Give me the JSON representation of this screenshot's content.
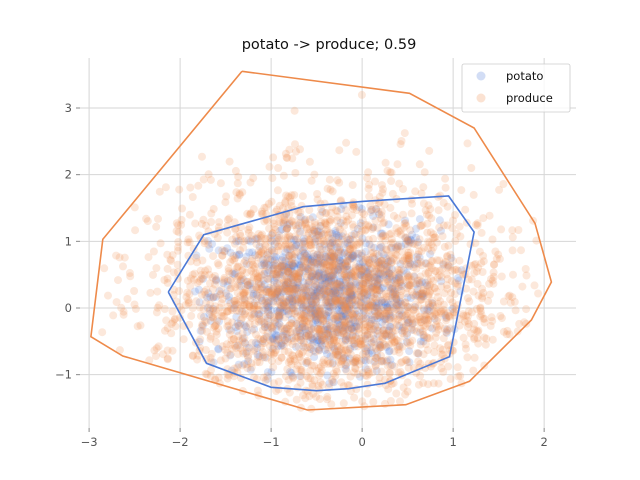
{
  "chart_data": {
    "type": "scatter",
    "title": "potato -> produce; 0.59",
    "xlabel": "",
    "ylabel": "",
    "xlim": [
      -3.1,
      2.35
    ],
    "ylim": [
      -1.8,
      3.75
    ],
    "xticks": [
      -3,
      -2,
      -1,
      0,
      1,
      2
    ],
    "yticks": [
      -1,
      0,
      1,
      2,
      3
    ],
    "grid": true,
    "legend_position": "top-right",
    "series": [
      {
        "name": "potato",
        "color": "#4a78d6",
        "hull": [
          [
            -2.13,
            0.24
          ],
          [
            -1.74,
            1.1
          ],
          [
            -0.65,
            1.52
          ],
          [
            0.02,
            1.6
          ],
          [
            0.95,
            1.68
          ],
          [
            1.23,
            1.14
          ],
          [
            0.96,
            -0.73
          ],
          [
            0.25,
            -1.13
          ],
          [
            -0.15,
            -1.21
          ],
          [
            -0.5,
            -1.24
          ],
          [
            -1.0,
            -1.19
          ],
          [
            -1.71,
            -0.83
          ],
          [
            -2.13,
            0.24
          ]
        ]
      },
      {
        "name": "produce",
        "color": "#ee8a4a",
        "hull": [
          [
            -1.32,
            3.55
          ],
          [
            0.52,
            3.22
          ],
          [
            1.23,
            2.7
          ],
          [
            1.9,
            1.27
          ],
          [
            2.08,
            0.39
          ],
          [
            1.86,
            -0.18
          ],
          [
            1.18,
            -1.1
          ],
          [
            0.48,
            -1.45
          ],
          [
            -0.6,
            -1.53
          ],
          [
            -2.63,
            -0.72
          ],
          [
            -2.98,
            -0.43
          ],
          [
            -2.85,
            1.03
          ],
          [
            -1.32,
            3.55
          ]
        ]
      }
    ]
  }
}
